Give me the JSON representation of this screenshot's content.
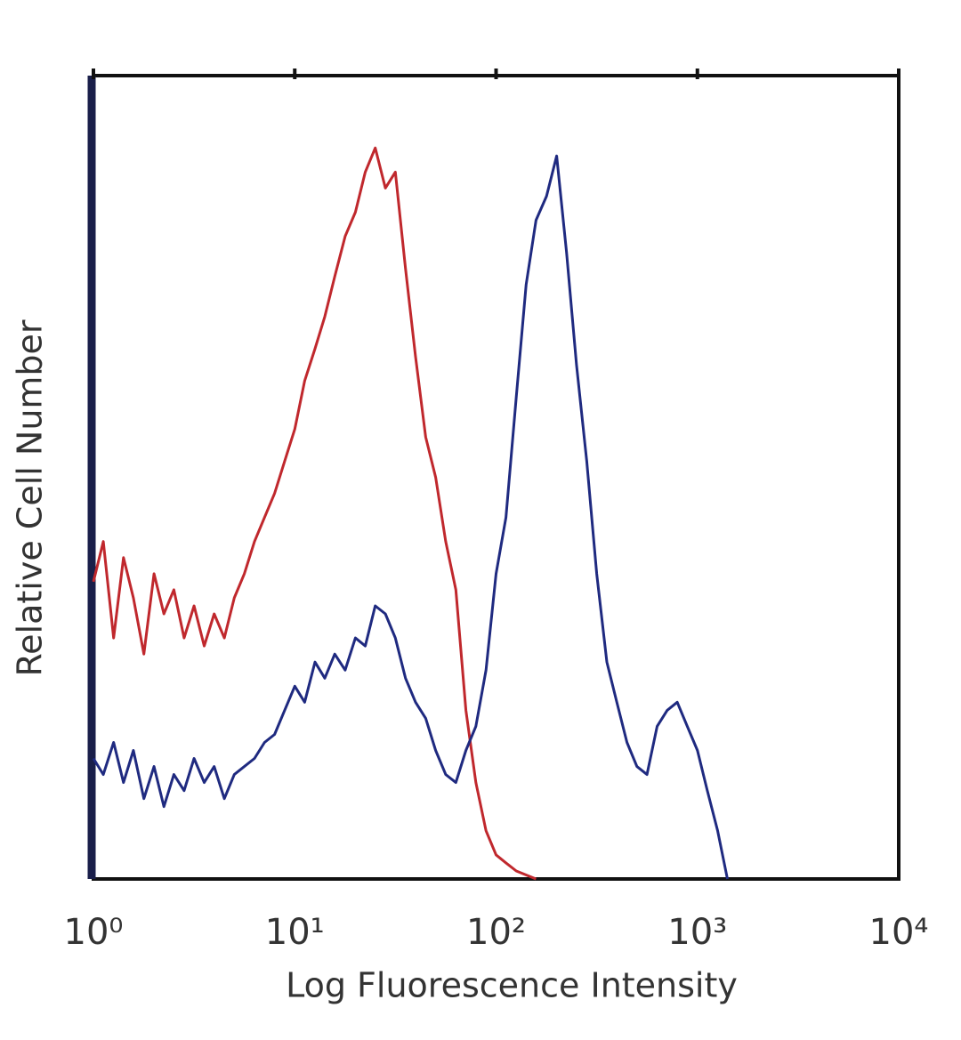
{
  "chart_data": {
    "type": "line",
    "xlabel": "Log Fluorescence Intensity",
    "ylabel": "Relative Cell Number",
    "xscale": "log",
    "xlim": [
      1,
      10000
    ],
    "xticks": [
      {
        "value": 1,
        "label": "10⁰"
      },
      {
        "value": 10,
        "label": "10¹"
      },
      {
        "value": 100,
        "label": "10²"
      },
      {
        "value": 1000,
        "label": "10³"
      },
      {
        "value": 10000,
        "label": "10⁴"
      }
    ],
    "ylim": [
      0,
      100
    ],
    "x": [
      1,
      1.12,
      1.26,
      1.41,
      1.58,
      1.78,
      2.0,
      2.24,
      2.51,
      2.82,
      3.16,
      3.55,
      3.98,
      4.47,
      5.01,
      5.62,
      6.31,
      7.08,
      7.94,
      8.91,
      10,
      11.2,
      12.6,
      14.1,
      15.8,
      17.8,
      20,
      22.4,
      25.1,
      28.2,
      31.6,
      35.5,
      39.8,
      44.7,
      50.1,
      56.2,
      63.1,
      70.8,
      79.4,
      89.1,
      100,
      112,
      126,
      141,
      158,
      178,
      200,
      224,
      251,
      282,
      316,
      355,
      398,
      447,
      501,
      562,
      631,
      708,
      794,
      891,
      1000,
      1120,
      1260,
      1410
    ],
    "series": [
      {
        "color": "#c0282d",
        "values": [
          37,
          42,
          30,
          40,
          35,
          28,
          38,
          33,
          36,
          30,
          34,
          29,
          33,
          30,
          35,
          38,
          42,
          45,
          48,
          52,
          56,
          62,
          66,
          70,
          75,
          80,
          83,
          88,
          91,
          86,
          88,
          76,
          65,
          55,
          50,
          42,
          36,
          21,
          12,
          6,
          3,
          2,
          1,
          0.5,
          0,
          null,
          null,
          null,
          null,
          null,
          null,
          null,
          null,
          null,
          null,
          null,
          null,
          null,
          null,
          null,
          null,
          null,
          null,
          null
        ]
      },
      {
        "color": "#1f2a80",
        "values": [
          15,
          13,
          17,
          12,
          16,
          10,
          14,
          9,
          13,
          11,
          15,
          12,
          14,
          10,
          13,
          14,
          15,
          17,
          18,
          21,
          24,
          22,
          27,
          25,
          28,
          26,
          30,
          29,
          34,
          33,
          30,
          25,
          22,
          20,
          16,
          13,
          12,
          16,
          19,
          26,
          38,
          45,
          60,
          74,
          82,
          85,
          90,
          78,
          64,
          52,
          38,
          27,
          22,
          17,
          14,
          13,
          19,
          21,
          22,
          19,
          16,
          11,
          6,
          0
        ]
      }
    ]
  }
}
